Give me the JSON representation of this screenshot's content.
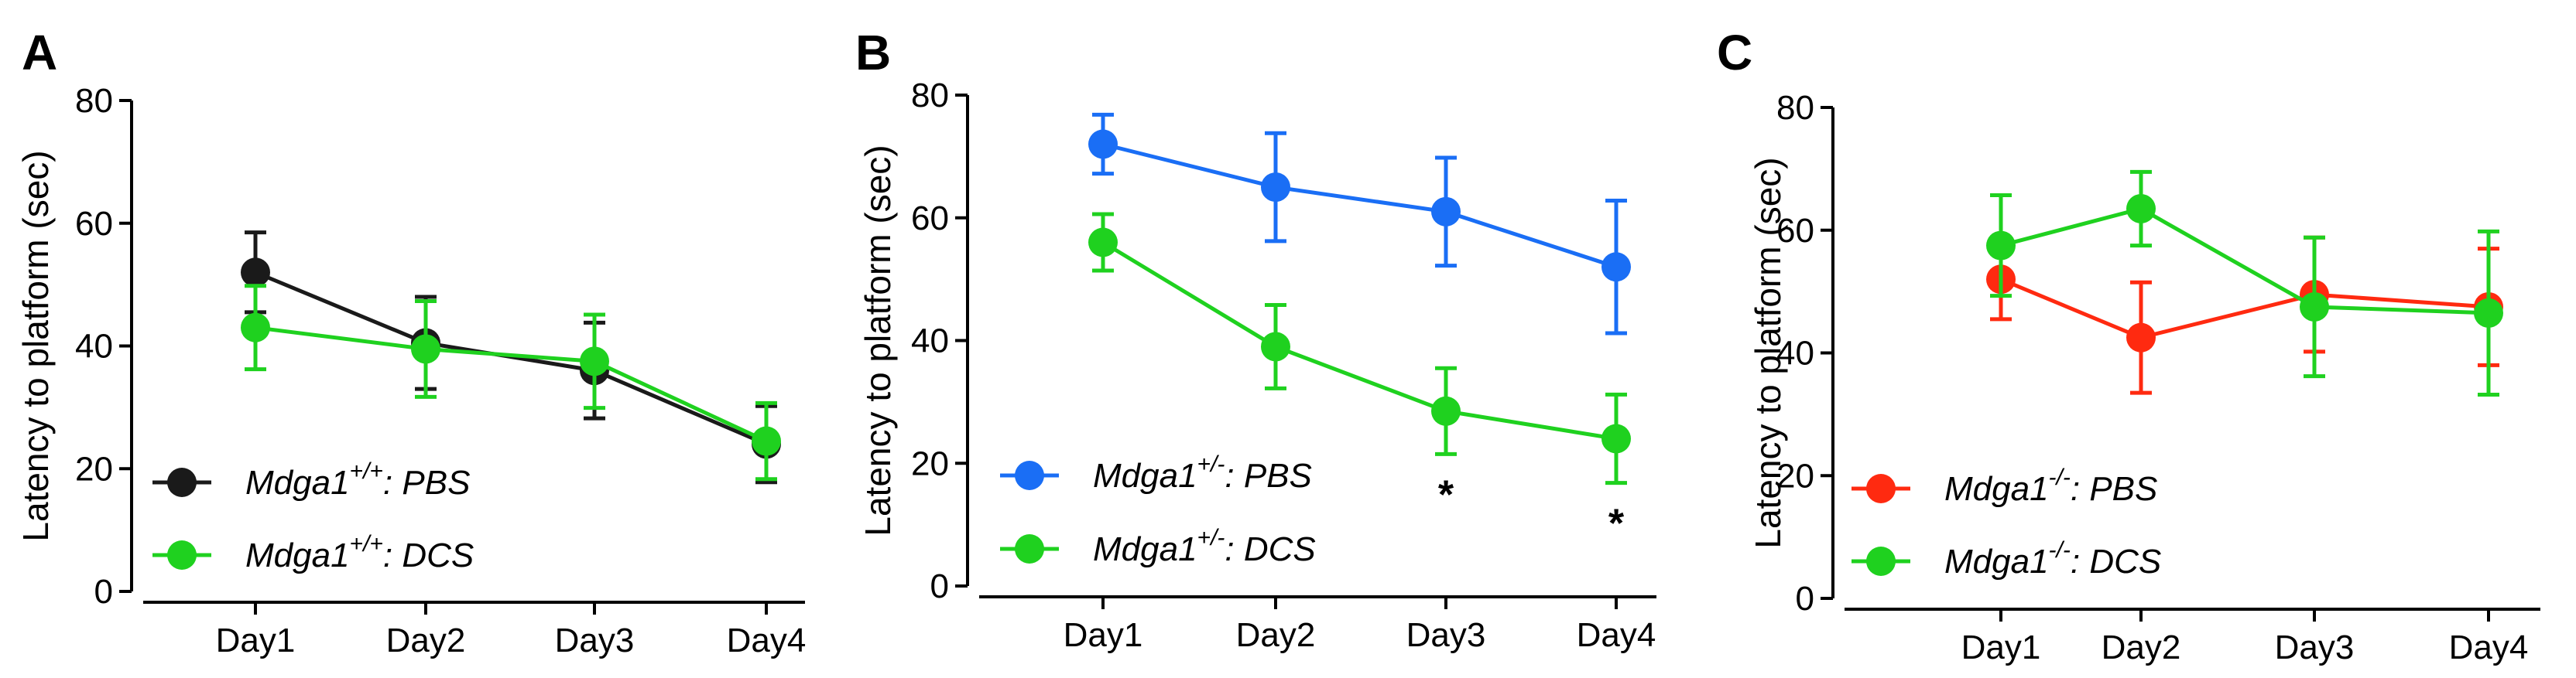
{
  "colors": {
    "black": "#1a1a1a",
    "green": "#1fd11f",
    "blue": "#1a6ef5",
    "red": "#ff2a10"
  },
  "chart_data": [
    {
      "panel": "A",
      "type": "line",
      "categories": [
        "Day1",
        "Day2",
        "Day3",
        "Day4"
      ],
      "ylabel": "Latency to platform (sec)",
      "xlabel": "",
      "ylim": [
        0,
        80
      ],
      "yticks": [
        0,
        20,
        40,
        60,
        80
      ],
      "legend_position": "bottom-left",
      "series": [
        {
          "name": "Mdga1",
          "sup": "+/+",
          "suffix": ": PBS",
          "color_key": "black",
          "values": [
            52,
            40.5,
            36,
            24
          ],
          "errors": [
            6.5,
            7.5,
            7.8,
            6.2
          ]
        },
        {
          "name": "Mdga1",
          "sup": "+/+",
          "suffix": ": DCS",
          "color_key": "green",
          "values": [
            43,
            39.5,
            37.5,
            24.5
          ],
          "errors": [
            6.8,
            7.8,
            7.6,
            6.2
          ]
        }
      ],
      "annotations": []
    },
    {
      "panel": "B",
      "type": "line",
      "categories": [
        "Day1",
        "Day2",
        "Day3",
        "Day4"
      ],
      "ylabel": "Latency to platform (sec)",
      "xlabel": "",
      "ylim": [
        0,
        80
      ],
      "yticks": [
        0,
        20,
        40,
        60,
        80
      ],
      "legend_position": "bottom-left",
      "series": [
        {
          "name": "Mdga1",
          "sup": "+/-",
          "suffix": ": PBS",
          "color_key": "blue",
          "values": [
            72,
            65,
            61,
            52
          ],
          "errors": [
            4.8,
            8.8,
            8.8,
            10.8
          ]
        },
        {
          "name": "Mdga1",
          "sup": "+/-",
          "suffix": ": DCS",
          "color_key": "green",
          "values": [
            56,
            39,
            28.5,
            24
          ],
          "errors": [
            4.6,
            6.8,
            7,
            7.2
          ]
        }
      ],
      "annotations": [
        {
          "category": "Day3",
          "text": "*"
        },
        {
          "category": "Day4",
          "text": "*"
        }
      ]
    },
    {
      "panel": "C",
      "type": "line",
      "categories": [
        "Day1",
        "Day2",
        "Day3",
        "Day4"
      ],
      "ylabel": "Latency to platform (sec)",
      "xlabel": "",
      "ylim": [
        0,
        80
      ],
      "yticks": [
        0,
        20,
        40,
        60,
        80
      ],
      "legend_position": "bottom-left",
      "series": [
        {
          "name": "Mdga1",
          "sup": "-/-",
          "suffix": ": PBS",
          "color_key": "red",
          "values": [
            52,
            42.5,
            49.5,
            47.5
          ],
          "errors": [
            6.5,
            9,
            9.3,
            9.5
          ]
        },
        {
          "name": "Mdga1",
          "sup": "-/-",
          "suffix": ": DCS",
          "color_key": "green",
          "values": [
            57.5,
            63.5,
            47.5,
            46.5
          ],
          "errors": [
            8.2,
            6,
            11.3,
            13.3
          ]
        }
      ],
      "annotations": []
    }
  ]
}
